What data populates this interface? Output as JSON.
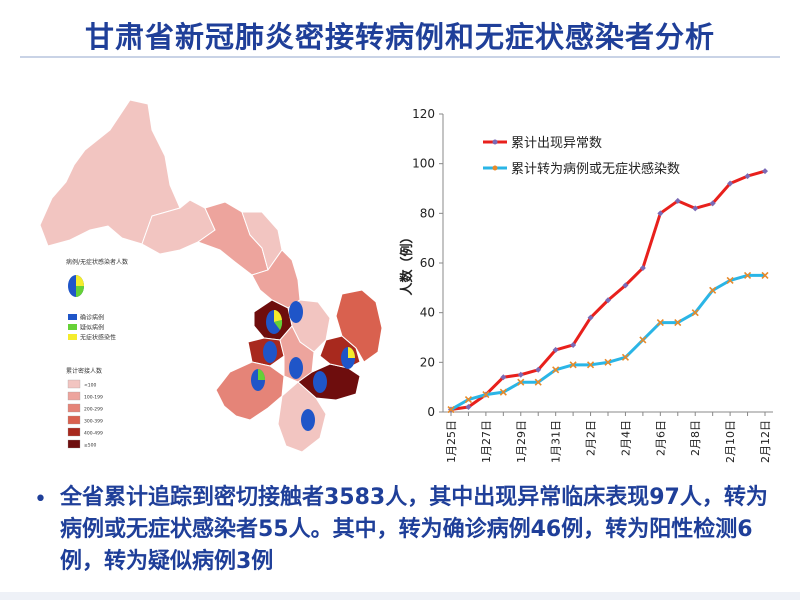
{
  "title": "甘肃省新冠肺炎密接转病例和无症状感染者分析",
  "map": {
    "pie_legend_title": "病例/无症状感染者人数",
    "pie_legend_items": [
      {
        "label": "确诊病例",
        "color": "#1f55c8"
      },
      {
        "label": "疑似病例",
        "color": "#66d136"
      },
      {
        "label": "无症状感染性",
        "color": "#f4ec2c"
      }
    ],
    "choropleth_title": "累计密接人数",
    "choropleth_items": [
      {
        "label": "<100",
        "color": "#f2c5c1"
      },
      {
        "label": "100-199",
        "color": "#eda49d"
      },
      {
        "label": "200-299",
        "color": "#e58478"
      },
      {
        "label": "300-399",
        "color": "#d9614f"
      },
      {
        "label": "400-499",
        "color": "#a8291e"
      },
      {
        "label": "≥500",
        "color": "#6e0d0d"
      }
    ]
  },
  "chart_data": {
    "type": "line",
    "x": [
      "1月25日",
      "1月26日",
      "1月27日",
      "1月28日",
      "1月29日",
      "1月30日",
      "1月31日",
      "2月1日",
      "2月2日",
      "2月3日",
      "2月4日",
      "2月5日",
      "2月6日",
      "2月7日",
      "2月8日",
      "2月9日",
      "2月10日",
      "2月11日",
      "2月12日"
    ],
    "x_tick_labels": [
      "1月25日",
      "1月27日",
      "1月29日",
      "1月31日",
      "2月2日",
      "2月4日",
      "2月6日",
      "2月8日",
      "2月10日",
      "2月12日"
    ],
    "series": [
      {
        "name": "累计出现异常数",
        "color": "#e8201c",
        "marker_color": "#7b6ab5",
        "values": [
          1,
          2,
          7,
          14,
          15,
          17,
          25,
          27,
          38,
          45,
          51,
          58,
          80,
          85,
          82,
          84,
          92,
          95,
          97
        ]
      },
      {
        "name": "累计转为病例或无症状感染数",
        "color": "#2ab5e6",
        "marker_color": "#e88a2a",
        "values": [
          1,
          5,
          7,
          8,
          12,
          12,
          17,
          19,
          19,
          20,
          22,
          29,
          36,
          36,
          40,
          49,
          53,
          55,
          55
        ]
      }
    ],
    "ylabel": "人数（例）",
    "ylim": [
      0,
      120
    ],
    "yticks": [
      0,
      20,
      40,
      60,
      80,
      100,
      120
    ],
    "legend": "top"
  },
  "summary": {
    "bullet": "•",
    "text": "全省累计追踪到密切接触者3583人，其中出现异常临床表现97人，转为病例或无症状感染者55人。其中，转为确诊病例46例，转为阳性检测6例，转为疑似病例3例"
  }
}
